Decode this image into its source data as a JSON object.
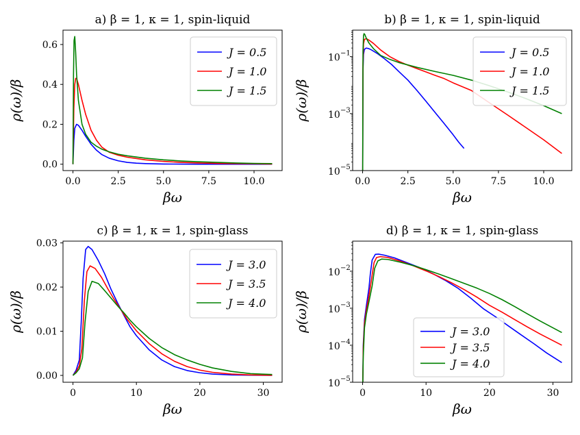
{
  "chart_data": [
    {
      "type": "line",
      "title": "a) β = 1, κ = 1, spin-liquid",
      "xlabel": "βω",
      "ylabel": "ρ(ω)/β",
      "yscale": "linear",
      "xlim": [
        -0.55,
        11.55
      ],
      "ylim": [
        -0.032,
        0.672
      ],
      "xticks": [
        0.0,
        2.5,
        5.0,
        7.5,
        10.0
      ],
      "xtick_labels": [
        "0.0",
        "2.5",
        "5.0",
        "7.5",
        "10.0"
      ],
      "yticks": [
        0.0,
        0.2,
        0.4,
        0.6
      ],
      "ytick_labels": [
        "0.0",
        "0.2",
        "0.4",
        "0.6"
      ],
      "legend_position": "upper-right",
      "series": [
        {
          "name": "J = 0.5",
          "color": "#0000ff",
          "x": [
            0,
            0.05,
            0.1,
            0.2,
            0.3,
            0.5,
            0.7,
            1.0,
            1.3,
            1.6,
            2.0,
            2.5,
            3,
            3.5,
            4,
            5,
            6,
            7,
            8,
            9,
            10,
            11
          ],
          "y": [
            0,
            0.12,
            0.18,
            0.2,
            0.195,
            0.17,
            0.14,
            0.1,
            0.07,
            0.048,
            0.03,
            0.017,
            0.009,
            0.005,
            0.003,
            0.001,
            0.0004,
            0.0001,
            0,
            0,
            0,
            0
          ]
        },
        {
          "name": "J = 1.0",
          "color": "#ff0000",
          "x": [
            0,
            0.05,
            0.1,
            0.15,
            0.2,
            0.3,
            0.5,
            0.7,
            1.0,
            1.3,
            1.6,
            2.0,
            2.5,
            3,
            4,
            5,
            6,
            7,
            8,
            9,
            10,
            11
          ],
          "y": [
            0,
            0.28,
            0.4,
            0.43,
            0.43,
            0.4,
            0.32,
            0.25,
            0.17,
            0.12,
            0.085,
            0.06,
            0.045,
            0.035,
            0.022,
            0.014,
            0.009,
            0.006,
            0.004,
            0.003,
            0.002,
            0.001
          ]
        },
        {
          "name": "J = 1.5",
          "color": "#008000",
          "x": [
            0,
            0.03,
            0.06,
            0.1,
            0.15,
            0.2,
            0.3,
            0.5,
            0.7,
            1.0,
            1.3,
            1.6,
            2.0,
            2.5,
            3,
            4,
            5,
            6,
            7,
            8,
            9,
            10,
            11
          ],
          "y": [
            0,
            0.45,
            0.62,
            0.64,
            0.56,
            0.45,
            0.32,
            0.2,
            0.15,
            0.11,
            0.09,
            0.075,
            0.062,
            0.05,
            0.042,
            0.03,
            0.022,
            0.016,
            0.012,
            0.009,
            0.006,
            0.004,
            0.003
          ]
        }
      ]
    },
    {
      "type": "line",
      "title": "b) β = 1, κ = 1, spin-liquid",
      "xlabel": "βω",
      "ylabel": "ρ(ω)/β",
      "yscale": "log",
      "xlim": [
        -0.55,
        11.55
      ],
      "ylim": [
        1e-05,
        0.85
      ],
      "xticks": [
        0.0,
        2.5,
        5.0,
        7.5,
        10.0
      ],
      "xtick_labels": [
        "0.0",
        "2.5",
        "5.0",
        "7.5",
        "10.0"
      ],
      "yticks": [
        1e-05,
        0.001,
        0.1
      ],
      "ytick_labels": [
        {
          "base": "10",
          "exp": "−5"
        },
        {
          "base": "10",
          "exp": "−3"
        },
        {
          "base": "10",
          "exp": "−1"
        }
      ],
      "legend_position": "upper-right",
      "series": [
        {
          "name": "J = 0.5",
          "color": "#0000ff",
          "x": [
            0.005,
            0.02,
            0.05,
            0.1,
            0.2,
            0.35,
            0.5,
            0.8,
            1.2,
            1.6,
            2.0,
            2.5,
            3.0,
            3.5,
            4.0,
            4.5,
            5.0,
            5.3,
            5.6
          ],
          "y": [
            1e-05,
            0.03,
            0.12,
            0.18,
            0.2,
            0.19,
            0.17,
            0.13,
            0.085,
            0.053,
            0.03,
            0.015,
            0.0065,
            0.0027,
            0.0011,
            0.00045,
            0.00018,
            0.0001,
            6e-05
          ]
        },
        {
          "name": "J = 1.0",
          "color": "#ff0000",
          "x": [
            0.005,
            0.02,
            0.05,
            0.1,
            0.2,
            0.35,
            0.6,
            1.0,
            1.5,
            2.0,
            2.5,
            3.0,
            3.5,
            4.0,
            4.5,
            5.0,
            6.0,
            7.0,
            8.0,
            9.0,
            10.0,
            11.0
          ],
          "y": [
            1e-05,
            0.05,
            0.28,
            0.4,
            0.43,
            0.38,
            0.29,
            0.17,
            0.1,
            0.068,
            0.05,
            0.038,
            0.029,
            0.022,
            0.017,
            0.012,
            0.0065,
            0.0024,
            0.0009,
            0.00033,
            0.00012,
            4e-05
          ]
        },
        {
          "name": "J = 1.5",
          "color": "#008000",
          "x": [
            0.005,
            0.02,
            0.05,
            0.08,
            0.12,
            0.2,
            0.35,
            0.6,
            1.0,
            1.5,
            2.0,
            3.0,
            4.0,
            5.0,
            6.0,
            7.0,
            8.0,
            9.0,
            10.0,
            11.0
          ],
          "y": [
            1e-05,
            0.15,
            0.55,
            0.64,
            0.6,
            0.45,
            0.3,
            0.19,
            0.11,
            0.08,
            0.062,
            0.042,
            0.03,
            0.022,
            0.015,
            0.0095,
            0.0058,
            0.0034,
            0.0019,
            0.001
          ]
        }
      ]
    },
    {
      "type": "line",
      "title": "c) β = 1, κ = 1, spin-glass",
      "xlabel": "βω",
      "ylabel": "ρ(ω)/β",
      "yscale": "linear",
      "xlim": [
        -1.57,
        32.97
      ],
      "ylim": [
        -0.00155,
        0.0304
      ],
      "xticks": [
        0,
        10,
        20,
        30
      ],
      "xtick_labels": [
        "0",
        "10",
        "20",
        "30"
      ],
      "yticks": [
        0.0,
        0.01,
        0.02,
        0.03
      ],
      "ytick_labels": [
        "0.00",
        "0.01",
        "0.02",
        "0.03"
      ],
      "legend_position": "upper-right",
      "series": [
        {
          "name": "J = 3.0",
          "color": "#0000ff",
          "x": [
            0,
            0.5,
            1.0,
            1.3,
            1.6,
            2.0,
            2.4,
            3.0,
            4,
            5,
            6,
            7,
            8,
            9,
            10,
            12,
            14,
            16,
            18,
            20,
            22,
            25,
            28,
            31.4
          ],
          "y": [
            0,
            0.0012,
            0.0035,
            0.012,
            0.022,
            0.0285,
            0.0292,
            0.0285,
            0.026,
            0.023,
            0.0195,
            0.0165,
            0.0137,
            0.011,
            0.009,
            0.0058,
            0.0035,
            0.002,
            0.0011,
            0.0006,
            0.0003,
            0.0001,
            4e-05,
            1e-05
          ]
        },
        {
          "name": "J = 3.5",
          "color": "#ff0000",
          "x": [
            0,
            0.5,
            1.0,
            1.4,
            1.8,
            2.2,
            2.7,
            3.5,
            4.5,
            5.5,
            6.5,
            7.5,
            8.5,
            10,
            12,
            14,
            16,
            18,
            20,
            22,
            25,
            28,
            31.4
          ],
          "y": [
            0,
            0.0008,
            0.0022,
            0.006,
            0.017,
            0.0235,
            0.0248,
            0.0242,
            0.0222,
            0.0196,
            0.0172,
            0.015,
            0.0128,
            0.0101,
            0.0072,
            0.0049,
            0.0032,
            0.002,
            0.0012,
            0.0007,
            0.0003,
            0.0001,
            3e-05
          ]
        },
        {
          "name": "J = 4.0",
          "color": "#008000",
          "x": [
            0,
            0.5,
            1.0,
            1.5,
            1.9,
            2.4,
            3.0,
            4.0,
            5,
            6,
            7,
            8,
            9,
            10,
            12,
            14,
            16,
            18,
            20,
            22,
            25,
            28,
            31.4
          ],
          "y": [
            0,
            0.0006,
            0.0015,
            0.004,
            0.012,
            0.019,
            0.0213,
            0.0208,
            0.0192,
            0.0175,
            0.0158,
            0.0142,
            0.0125,
            0.011,
            0.0084,
            0.0063,
            0.0047,
            0.0035,
            0.0025,
            0.0017,
            0.0009,
            0.0004,
            0.0002
          ]
        }
      ]
    },
    {
      "type": "line",
      "title": "d) β = 1, κ = 1, spin-glass",
      "xlabel": "βω",
      "ylabel": "ρ(ω)/β",
      "yscale": "log",
      "xlim": [
        -1.57,
        32.97
      ],
      "ylim": [
        1e-05,
        0.065
      ],
      "xticks": [
        0,
        10,
        20,
        30
      ],
      "xtick_labels": [
        "0",
        "10",
        "20",
        "30"
      ],
      "yticks": [
        1e-05,
        0.0001,
        0.001,
        0.01
      ],
      "ytick_labels": [
        {
          "base": "10",
          "exp": "−5"
        },
        {
          "base": "10",
          "exp": "−4"
        },
        {
          "base": "10",
          "exp": "−3"
        },
        {
          "base": "10",
          "exp": "−2"
        }
      ],
      "legend_position": "lower-center",
      "series": [
        {
          "name": "J = 3.0",
          "color": "#0000ff",
          "x": [
            0.03,
            0.1,
            0.3,
            0.6,
            1.0,
            1.2,
            1.5,
            2.0,
            2.5,
            3.5,
            5,
            7,
            9,
            11,
            13,
            15,
            17,
            19,
            21,
            23,
            25,
            27,
            29,
            31.4
          ],
          "y": [
            1e-05,
            0.0001,
            0.0005,
            0.0012,
            0.0035,
            0.008,
            0.02,
            0.0285,
            0.029,
            0.027,
            0.023,
            0.017,
            0.0125,
            0.0087,
            0.0057,
            0.0035,
            0.0019,
            0.00098,
            0.00058,
            0.00033,
            0.00019,
            0.00011,
            6.2e-05,
            3.4e-05
          ]
        },
        {
          "name": "J = 3.5",
          "color": "#ff0000",
          "x": [
            0.03,
            0.1,
            0.3,
            0.6,
            1.0,
            1.4,
            1.8,
            2.2,
            2.8,
            4,
            6,
            8,
            10,
            12,
            14,
            16,
            18,
            20,
            22,
            24,
            26,
            28,
            31.4
          ],
          "y": [
            1e-05,
            8e-05,
            0.0004,
            0.0009,
            0.0022,
            0.006,
            0.017,
            0.0235,
            0.0248,
            0.0235,
            0.0186,
            0.014,
            0.0102,
            0.0072,
            0.0049,
            0.0032,
            0.002,
            0.0012,
            0.00078,
            0.00049,
            0.00031,
            0.0002,
            0.0001
          ]
        },
        {
          "name": "J = 4.0",
          "color": "#008000",
          "x": [
            0.03,
            0.1,
            0.3,
            0.6,
            1.0,
            1.5,
            1.9,
            2.4,
            3.0,
            4,
            6,
            8,
            10,
            12,
            14,
            16,
            18,
            20,
            22,
            24,
            26,
            28,
            31.4
          ],
          "y": [
            1e-05,
            5e-05,
            0.0003,
            0.0007,
            0.0015,
            0.004,
            0.012,
            0.019,
            0.0213,
            0.0208,
            0.0175,
            0.0142,
            0.011,
            0.0084,
            0.0063,
            0.0047,
            0.0035,
            0.0025,
            0.0017,
            0.0011,
            0.0007,
            0.00045,
            0.00022
          ]
        }
      ]
    }
  ]
}
